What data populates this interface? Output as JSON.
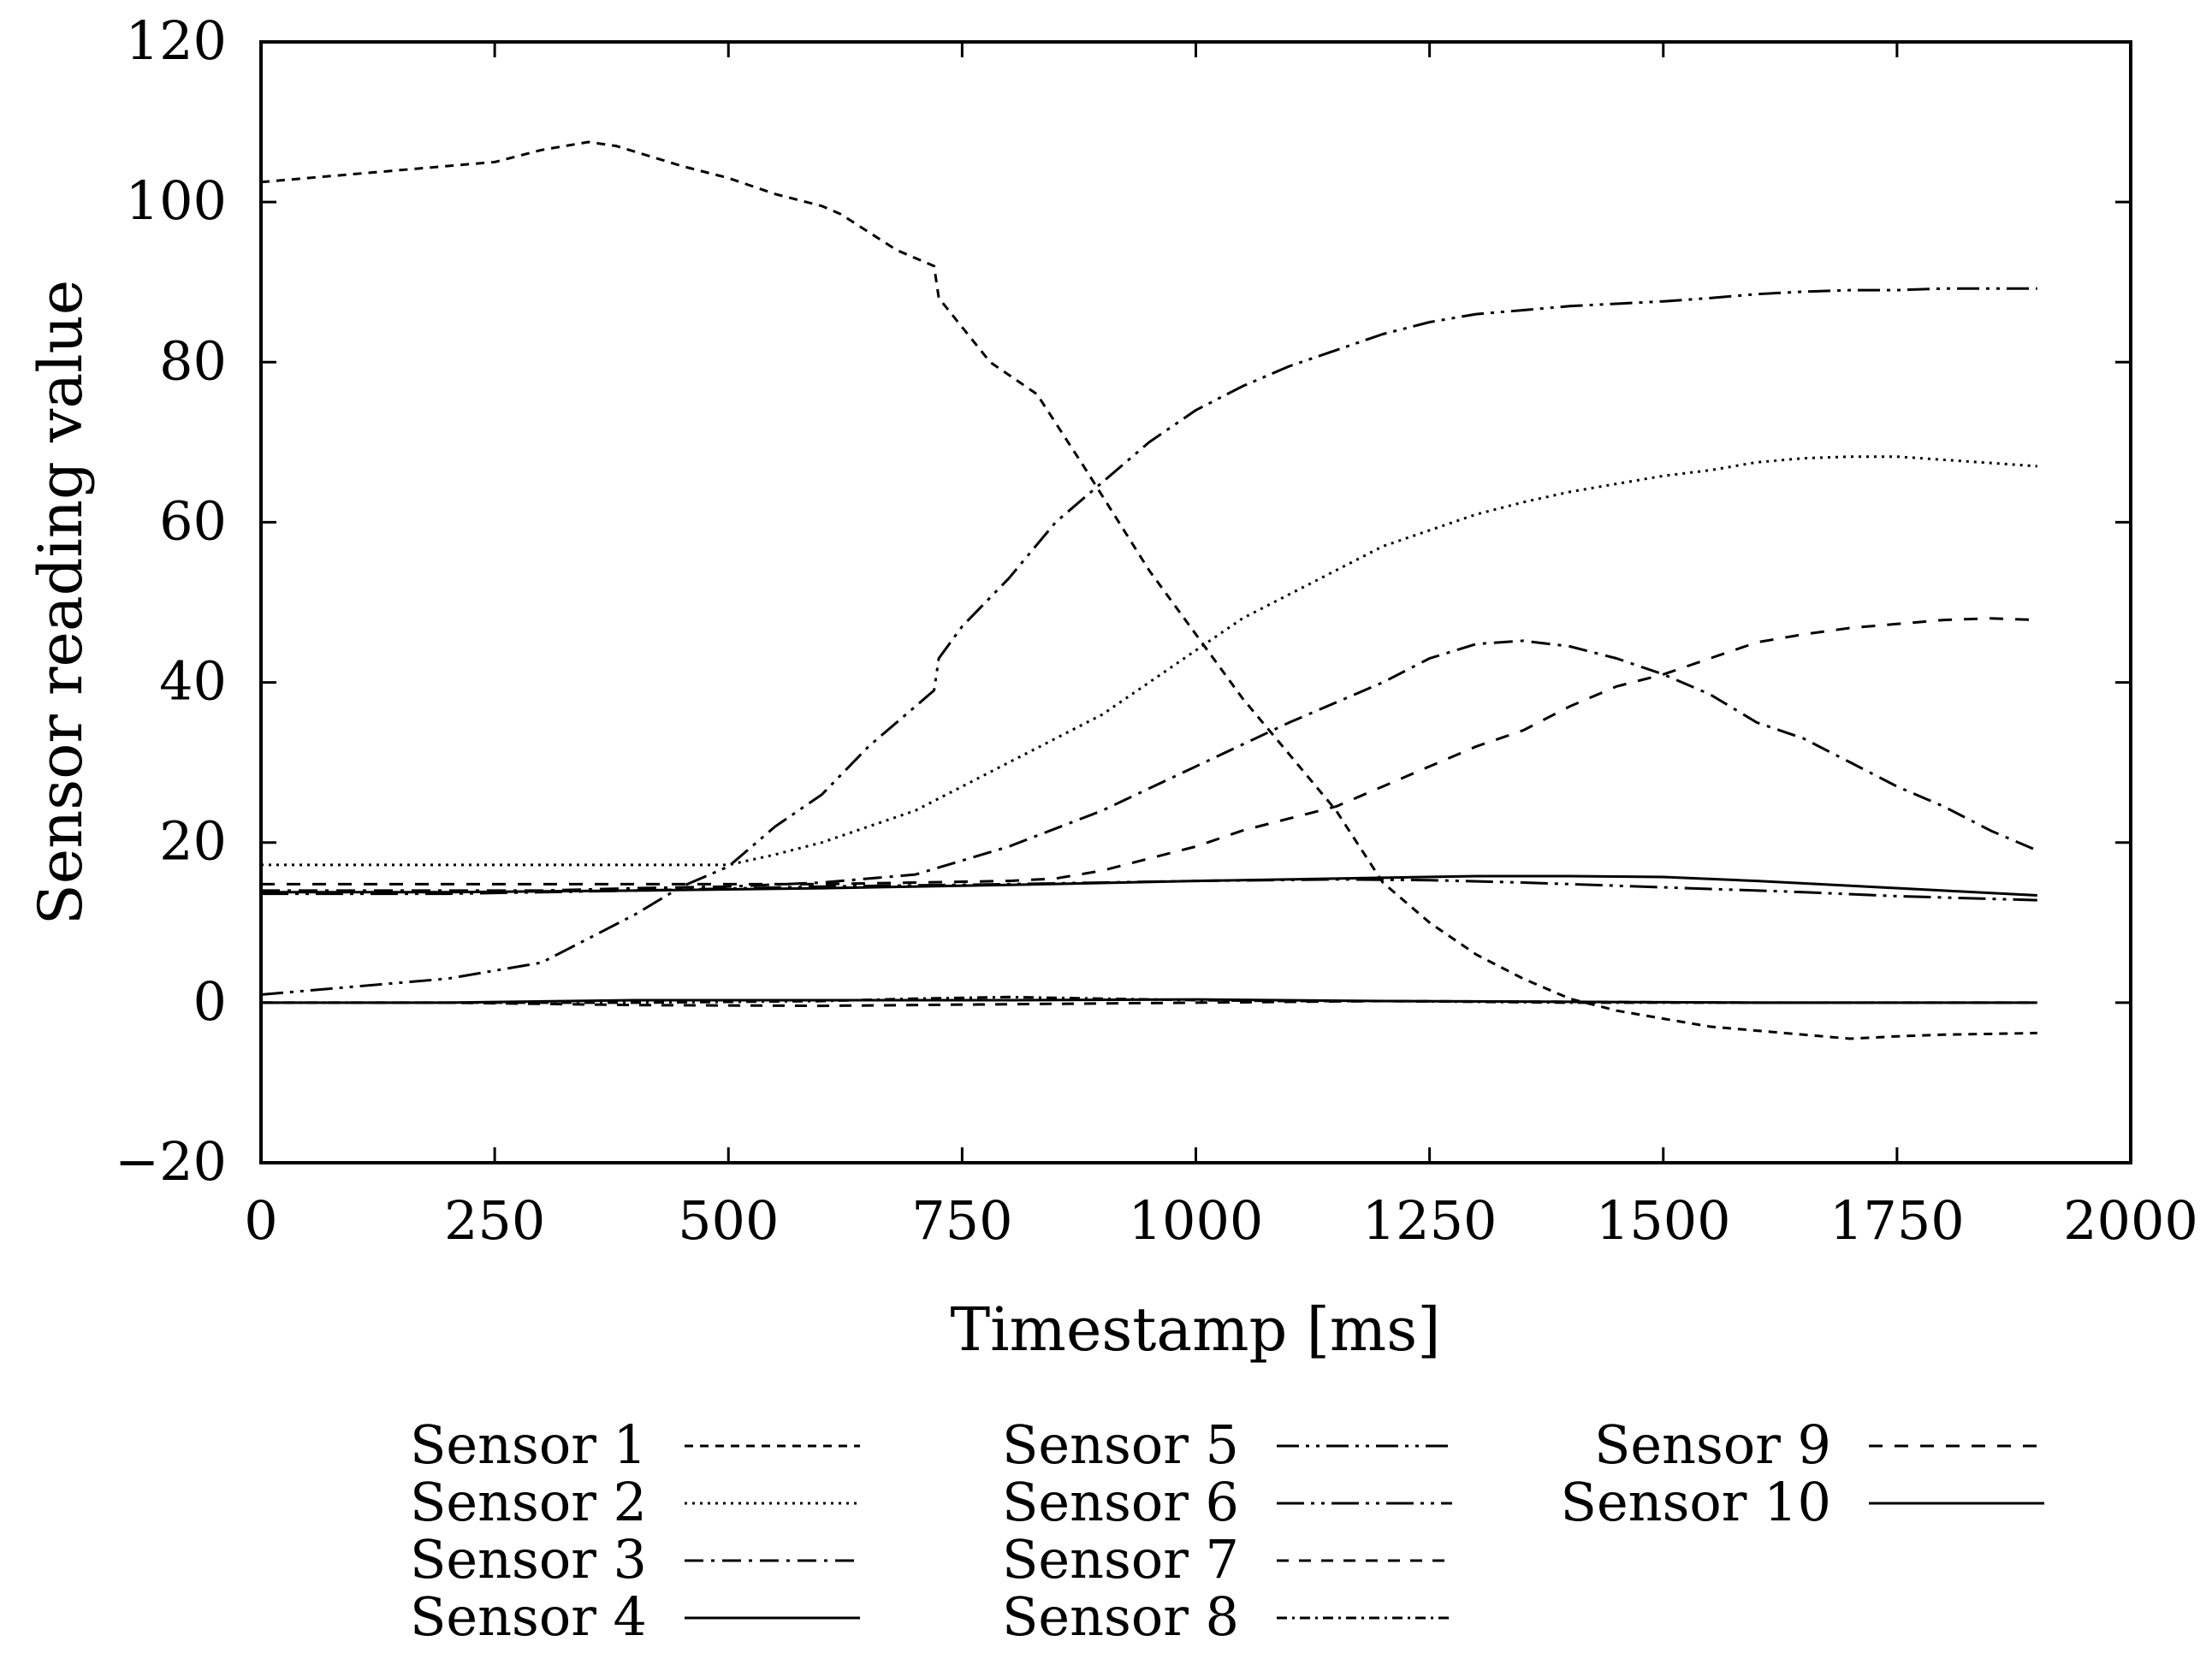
{
  "chart_data": {
    "type": "line",
    "title": "",
    "xlabel": "Timestamp [ms]",
    "ylabel": "Sensor reading value",
    "xlim": [
      0,
      2000
    ],
    "ylim": [
      -20,
      120
    ],
    "xticks": [
      0,
      250,
      500,
      750,
      1000,
      1250,
      1500,
      1750,
      2000
    ],
    "yticks": [
      -20,
      0,
      20,
      40,
      60,
      80,
      100,
      120
    ],
    "xtick_labels": [
      "0",
      "250",
      "500",
      "750",
      "1000",
      "1250",
      "1500",
      "1750",
      "2000"
    ],
    "ytick_labels": [
      "−20",
      "0",
      "20",
      "40",
      "60",
      "80",
      "100",
      "120"
    ],
    "grid": false,
    "legend_position": "bottom",
    "series": [
      {
        "name": "Sensor 1",
        "dash": "short-dash",
        "x": [
          0,
          100,
          200,
          250,
          300,
          350,
          380,
          450,
          500,
          550,
          600,
          620,
          680,
          720,
          725,
          780,
          830,
          880,
          950,
          1000,
          1050,
          1100,
          1150,
          1200,
          1250,
          1300,
          1350,
          1400,
          1450,
          1500,
          1550,
          1600,
          1650,
          1700,
          1750,
          1800,
          1900
        ],
        "values": [
          102.5,
          103.5,
          104.5,
          105,
          106.5,
          107.5,
          107,
          104.5,
          103,
          101,
          99.5,
          98.5,
          94,
          92,
          88,
          80,
          76,
          67,
          54,
          46,
          38,
          31,
          24,
          15,
          10,
          6,
          3,
          0.5,
          -1,
          -2,
          -3,
          -3.5,
          -4,
          -4.5,
          -4.2,
          -4,
          -3.8
        ]
      },
      {
        "name": "Sensor 2",
        "dash": "dotted",
        "x": [
          0,
          100,
          200,
          300,
          400,
          500,
          550,
          600,
          650,
          700,
          750,
          800,
          850,
          900,
          950,
          1000,
          1050,
          1100,
          1150,
          1200,
          1250,
          1300,
          1350,
          1400,
          1450,
          1500,
          1550,
          1600,
          1650,
          1700,
          1750,
          1800,
          1900
        ],
        "values": [
          17.2,
          17.2,
          17.2,
          17.2,
          17.2,
          17.2,
          18.5,
          20,
          22,
          24,
          27,
          30,
          33,
          36,
          40,
          44,
          48,
          51,
          54,
          57,
          59,
          61,
          62.5,
          63.8,
          64.8,
          65.8,
          66.5,
          67.5,
          68,
          68.2,
          68.2,
          67.8,
          67
        ]
      },
      {
        "name": "Sensor 3",
        "dash": "dash-dot",
        "x": [
          0,
          100,
          200,
          300,
          400,
          500,
          600,
          700,
          800,
          900,
          1000,
          1100,
          1200,
          1250,
          1300,
          1350,
          1400,
          1450,
          1500,
          1550,
          1600,
          1650,
          1700,
          1750,
          1800,
          1850,
          1900
        ],
        "values": [
          14,
          14,
          14,
          14,
          14.3,
          14.5,
          15,
          16,
          19.5,
          24,
          29.5,
          35,
          40,
          43,
          44.8,
          45.2,
          44.5,
          43,
          41,
          38.5,
          35,
          33,
          30,
          27,
          24.5,
          21.5,
          19
        ]
      },
      {
        "name": "Sensor 4",
        "dash": "solid",
        "x": [
          0,
          200,
          400,
          600,
          800,
          1000,
          1200,
          1400,
          1600,
          1900
        ],
        "values": [
          0,
          0,
          0.3,
          0.3,
          0.3,
          0.4,
          0.2,
          0.1,
          0,
          0
        ]
      },
      {
        "name": "Sensor 5",
        "dash": "dash-dot-dot",
        "x": [
          0,
          100,
          200,
          250,
          300,
          350,
          400,
          450,
          500,
          550,
          600,
          650,
          700,
          720,
          725,
          750,
          800,
          850,
          900,
          950,
          1000,
          1050,
          1100,
          1150,
          1200,
          1250,
          1300,
          1350,
          1400,
          1450,
          1500,
          1550,
          1600,
          1650,
          1700,
          1750,
          1800,
          1900
        ],
        "values": [
          1,
          2,
          3,
          4,
          5,
          8,
          11,
          14.5,
          17,
          22,
          26,
          32,
          37,
          39,
          43,
          47,
          53,
          60,
          65,
          70,
          74,
          77,
          79.5,
          81.5,
          83.5,
          85,
          86,
          86.5,
          87,
          87.3,
          87.6,
          88,
          88.5,
          88.8,
          89,
          89,
          89.2,
          89.2
        ]
      },
      {
        "name": "Sensor 6",
        "dash": "long-dash-dot-dot",
        "x": [
          0,
          200,
          400,
          600,
          800,
          1000,
          1150,
          1250,
          1350,
          1450,
          1550,
          1650,
          1750,
          1900
        ],
        "values": [
          13.6,
          13.6,
          14,
          14.5,
          14.8,
          15.2,
          15.4,
          15.3,
          15,
          14.6,
          14.2,
          13.8,
          13.3,
          12.8
        ]
      },
      {
        "name": "Sensor 7",
        "dash": "long-dash",
        "x": [
          0,
          200,
          400,
          600,
          800,
          1000,
          1200,
          1400,
          1600,
          1900
        ],
        "values": [
          0,
          0,
          -0.3,
          -0.4,
          -0.2,
          0,
          0.2,
          0.1,
          0,
          0
        ]
      },
      {
        "name": "Sensor 8",
        "dash": "dash-dot-fine",
        "x": [
          0,
          200,
          400,
          600,
          700,
          800,
          900,
          1000,
          1100,
          1200,
          1300,
          1400,
          1500,
          1600,
          1900
        ],
        "values": [
          0,
          0,
          0,
          0.2,
          0.5,
          0.7,
          0.5,
          0.3,
          0.2,
          0.2,
          0.1,
          0,
          0,
          0,
          0
        ]
      },
      {
        "name": "Sensor 9",
        "dash": "medium-dash",
        "x": [
          0,
          100,
          200,
          300,
          400,
          500,
          600,
          700,
          800,
          850,
          900,
          950,
          1000,
          1050,
          1100,
          1150,
          1200,
          1250,
          1300,
          1350,
          1400,
          1450,
          1500,
          1550,
          1600,
          1650,
          1700,
          1750,
          1800,
          1850,
          1900
        ],
        "values": [
          14.8,
          14.8,
          14.8,
          14.8,
          14.8,
          14.8,
          14.8,
          15,
          15.2,
          15.5,
          16.5,
          18,
          19.5,
          21.5,
          23,
          24.5,
          27,
          29.5,
          32,
          34,
          37,
          39.5,
          41,
          43,
          45,
          46,
          46.8,
          47.3,
          47.8,
          48,
          47.8
        ]
      },
      {
        "name": "Sensor 10",
        "dash": "solid",
        "x": [
          0,
          200,
          400,
          600,
          800,
          1000,
          1200,
          1300,
          1400,
          1500,
          1600,
          1700,
          1800,
          1900
        ],
        "values": [
          13.8,
          13.8,
          14,
          14.3,
          14.7,
          15.2,
          15.6,
          15.8,
          15.8,
          15.7,
          15.2,
          14.6,
          14,
          13.4
        ]
      }
    ]
  }
}
